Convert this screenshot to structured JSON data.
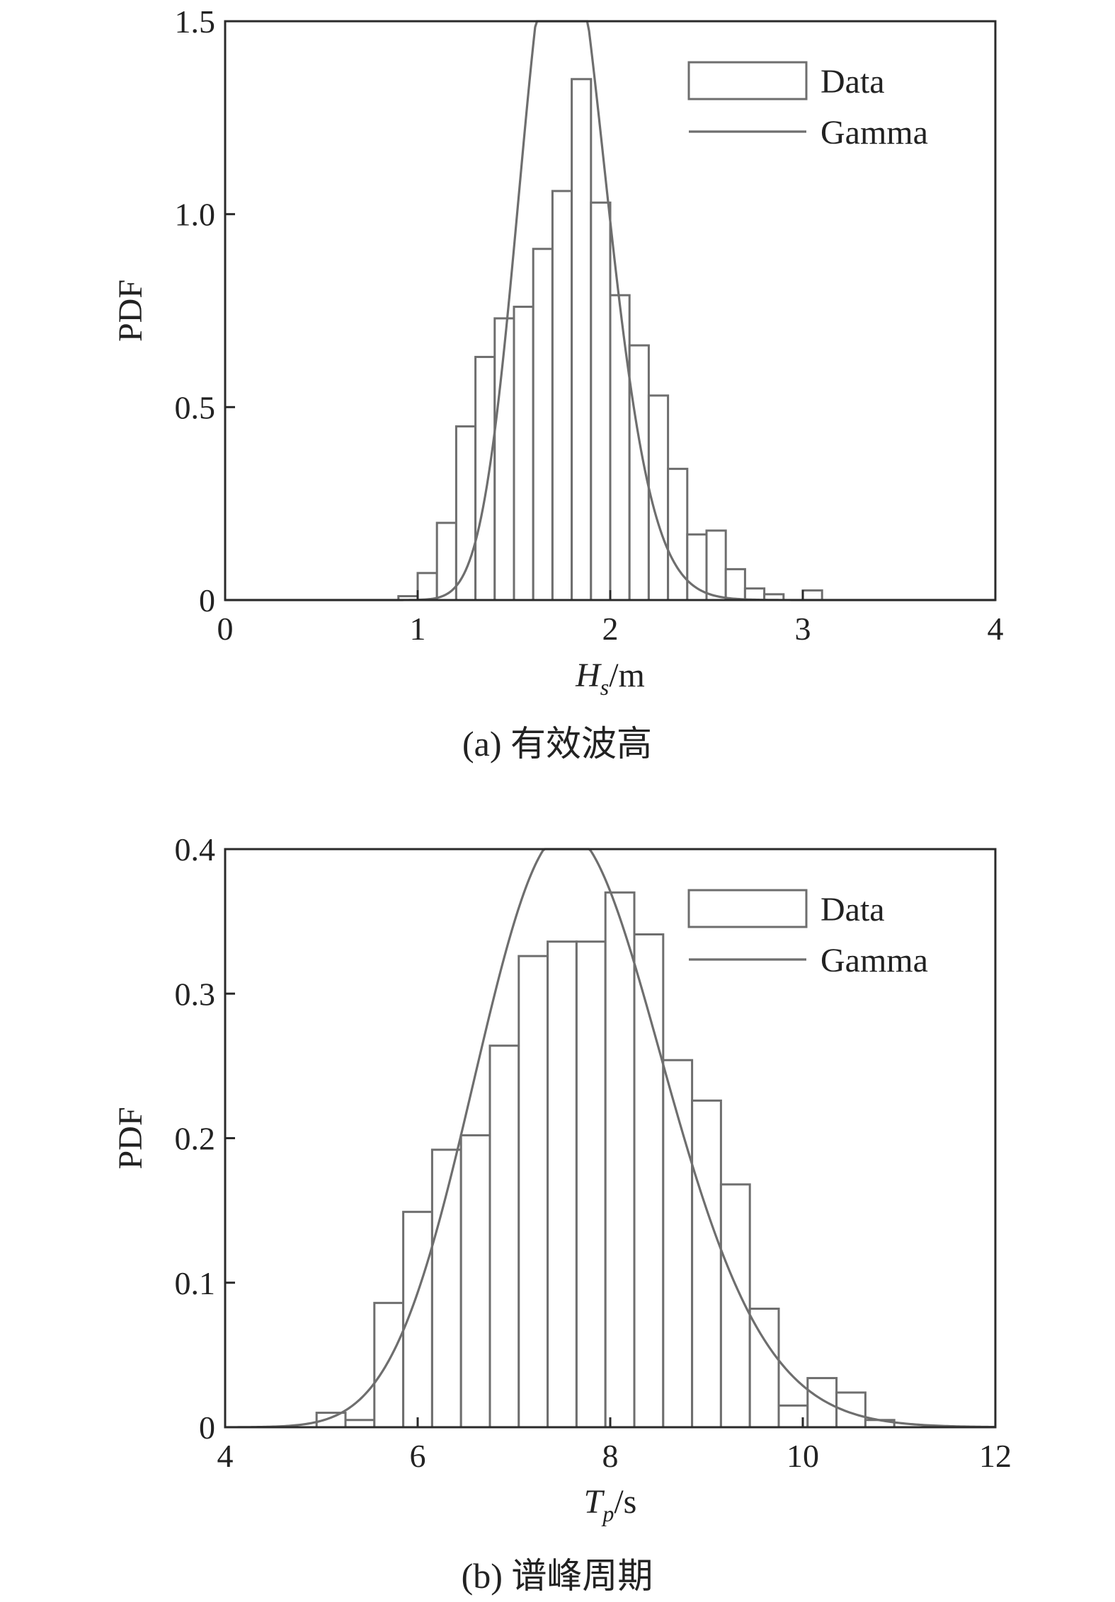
{
  "chart_data": [
    {
      "type": "bar",
      "caption": "(a) 有效波高",
      "ylabel": "PDF",
      "xlabel": {
        "main": "H",
        "sub": "s",
        "unit": "/m"
      },
      "xlim": [
        0,
        4
      ],
      "ylim": [
        0,
        1.5
      ],
      "xticks": [
        0,
        1,
        2,
        3,
        4
      ],
      "xtick_labels": [
        "0",
        "1",
        "2",
        "3",
        "4"
      ],
      "yticks": [
        0,
        0.5,
        1.0,
        1.5
      ],
      "ytick_labels": [
        "0",
        "0.5",
        "1.0",
        "1.5"
      ],
      "legend": {
        "placement": "top-right",
        "entries": [
          "Data",
          "Gamma"
        ]
      },
      "bin_width": 0.1,
      "bins": [
        {
          "x0": 0.9,
          "v": 0.01
        },
        {
          "x0": 1.0,
          "v": 0.07
        },
        {
          "x0": 1.1,
          "v": 0.2
        },
        {
          "x0": 1.2,
          "v": 0.45
        },
        {
          "x0": 1.3,
          "v": 0.63
        },
        {
          "x0": 1.4,
          "v": 0.73
        },
        {
          "x0": 1.5,
          "v": 0.76
        },
        {
          "x0": 1.6,
          "v": 0.91
        },
        {
          "x0": 1.7,
          "v": 1.06
        },
        {
          "x0": 1.8,
          "v": 1.35
        },
        {
          "x0": 1.9,
          "v": 1.03
        },
        {
          "x0": 2.0,
          "v": 0.79
        },
        {
          "x0": 2.1,
          "v": 0.66
        },
        {
          "x0": 2.2,
          "v": 0.53
        },
        {
          "x0": 2.3,
          "v": 0.34
        },
        {
          "x0": 2.4,
          "v": 0.17
        },
        {
          "x0": 2.5,
          "v": 0.18
        },
        {
          "x0": 2.6,
          "v": 0.08
        },
        {
          "x0": 2.7,
          "v": 0.03
        },
        {
          "x0": 2.8,
          "v": 0.015
        },
        {
          "x0": 3.0,
          "v": 0.025
        }
      ],
      "curve": {
        "name": "Gamma",
        "shape": 64,
        "scale": 0.0277
      }
    },
    {
      "type": "bar",
      "caption": "(b) 谱峰周期",
      "ylabel": "PDF",
      "xlabel": {
        "main": "T",
        "sub": "p",
        "unit": "/s"
      },
      "xlim": [
        4,
        12
      ],
      "ylim": [
        0,
        0.4
      ],
      "xticks": [
        4,
        6,
        8,
        10,
        12
      ],
      "xtick_labels": [
        "4",
        "6",
        "8",
        "10",
        "12"
      ],
      "yticks": [
        0,
        0.1,
        0.2,
        0.3,
        0.4
      ],
      "ytick_labels": [
        "0",
        "0.1",
        "0.2",
        "0.3",
        "0.4"
      ],
      "legend": {
        "placement": "top-right",
        "entries": [
          "Data",
          "Gamma"
        ]
      },
      "bin_width": 0.3,
      "bins": [
        {
          "x0": 4.95,
          "v": 0.01
        },
        {
          "x0": 5.25,
          "v": 0.005
        },
        {
          "x0": 5.55,
          "v": 0.086
        },
        {
          "x0": 5.85,
          "v": 0.149
        },
        {
          "x0": 6.15,
          "v": 0.192
        },
        {
          "x0": 6.45,
          "v": 0.202
        },
        {
          "x0": 6.75,
          "v": 0.264
        },
        {
          "x0": 7.05,
          "v": 0.326
        },
        {
          "x0": 7.35,
          "v": 0.336
        },
        {
          "x0": 7.65,
          "v": 0.336
        },
        {
          "x0": 7.95,
          "v": 0.37
        },
        {
          "x0": 8.25,
          "v": 0.341
        },
        {
          "x0": 8.55,
          "v": 0.254
        },
        {
          "x0": 8.85,
          "v": 0.226
        },
        {
          "x0": 9.15,
          "v": 0.168
        },
        {
          "x0": 9.45,
          "v": 0.082
        },
        {
          "x0": 9.75,
          "v": 0.015
        },
        {
          "x0": 10.05,
          "v": 0.034
        },
        {
          "x0": 10.35,
          "v": 0.024
        },
        {
          "x0": 10.65,
          "v": 0.005
        }
      ],
      "curve": {
        "name": "Gamma",
        "shape": 62,
        "scale": 0.1237
      }
    }
  ]
}
